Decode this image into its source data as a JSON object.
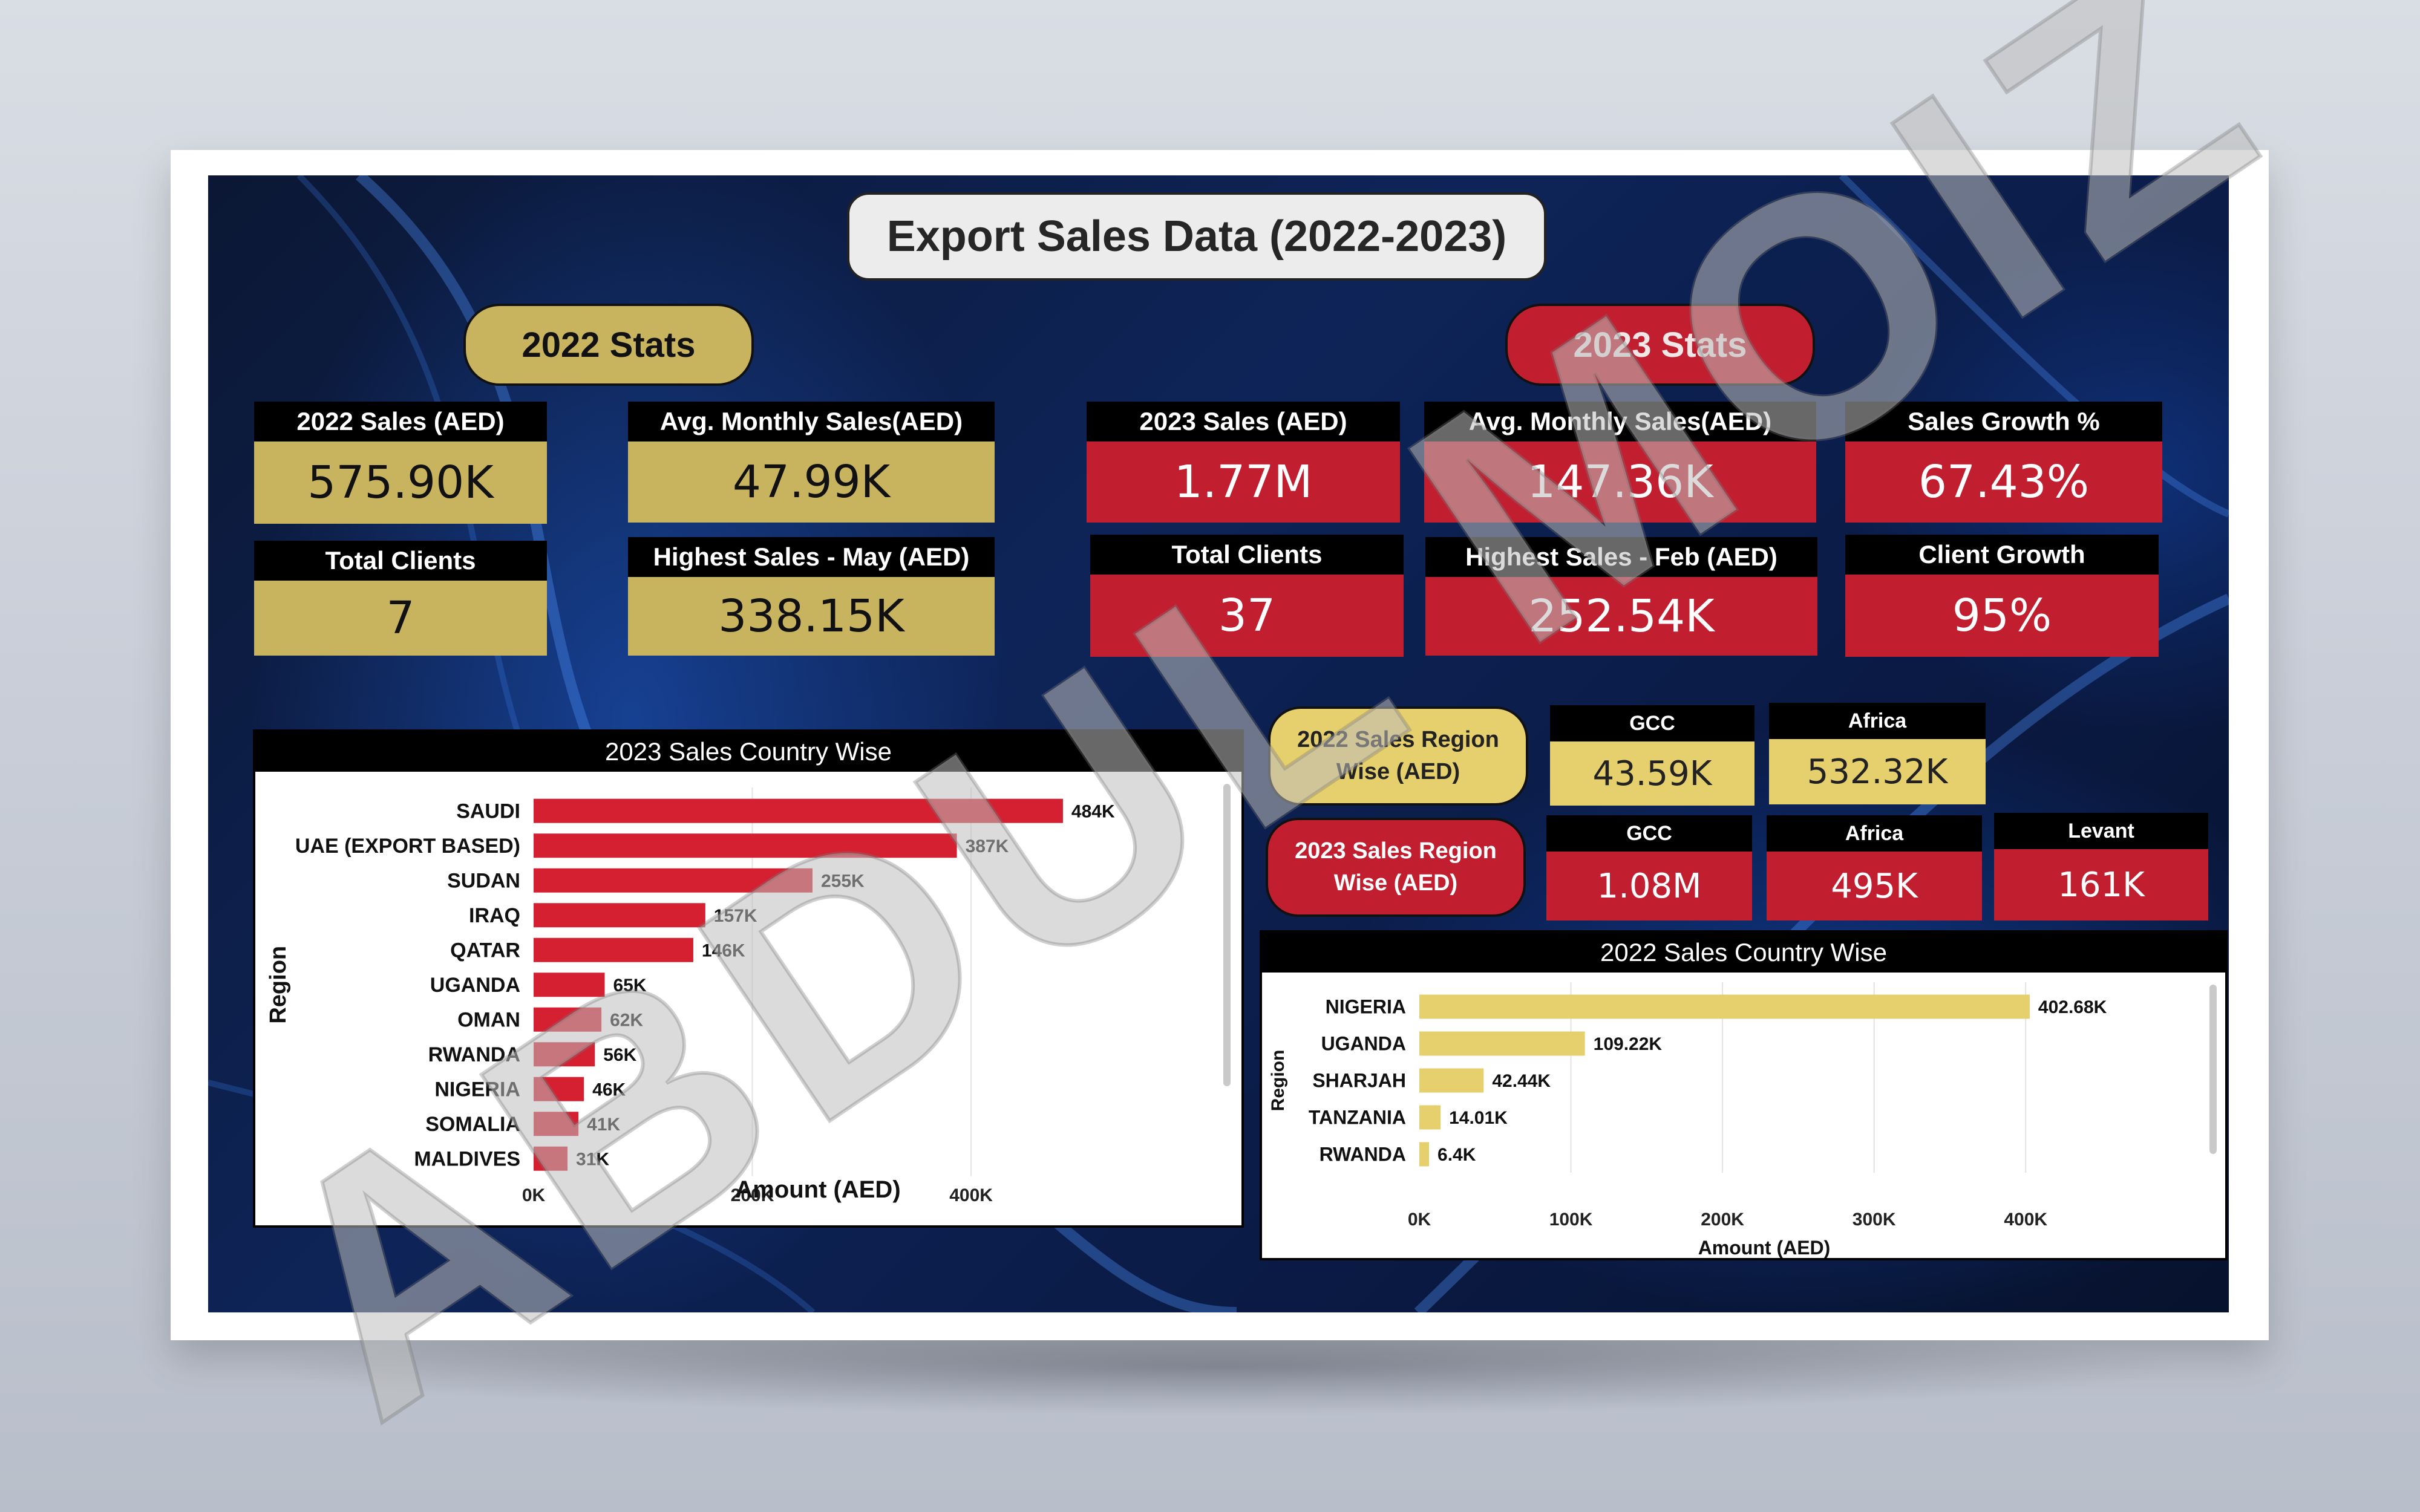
{
  "title": "Export Sales Data (2022-2023)",
  "stats2022": {
    "label": "2022 Stats",
    "cards": [
      {
        "header": "2022 Sales (AED)",
        "value": "575.90K"
      },
      {
        "header": "Avg. Monthly Sales(AED)",
        "value": "47.99K"
      },
      {
        "header": "Total Clients",
        "value": "7"
      },
      {
        "header": "Highest Sales - May (AED)",
        "value": "338.15K"
      }
    ]
  },
  "stats2023": {
    "label": "2023 Stats",
    "cards": [
      {
        "header": "2023 Sales (AED)",
        "value": "1.77M"
      },
      {
        "header": "Avg. Monthly Sales(AED)",
        "value": "147.36K"
      },
      {
        "header": "Sales Growth %",
        "value": "67.43%"
      },
      {
        "header": "Total Clients",
        "value": "37"
      },
      {
        "header": "Highest Sales - Feb (AED)",
        "value": "252.54K"
      },
      {
        "header": "Client Growth",
        "value": "95%"
      }
    ]
  },
  "region2022": {
    "label": "2022 Sales Region Wise (AED)",
    "label_line1": "2022 Sales Region",
    "label_line2": "Wise (AED)",
    "cards": [
      {
        "header": "GCC",
        "value": "43.59K"
      },
      {
        "header": "Africa",
        "value": "532.32K"
      }
    ]
  },
  "region2023": {
    "label": "2023 Sales Region Wise (AED)",
    "label_line1": "2023 Sales Region",
    "label_line2": "Wise (AED)",
    "cards": [
      {
        "header": "GCC",
        "value": "1.08M"
      },
      {
        "header": "Africa",
        "value": "495K"
      },
      {
        "header": "Levant",
        "value": "161K"
      }
    ]
  },
  "colors": {
    "gold": "#c8b35f",
    "light_gold": "#e6cf6d",
    "red": "#c11f30",
    "bar_red": "#d42030",
    "bar_gold": "#e6cf6d"
  },
  "watermark": "ABDUL MOIZ",
  "chart_data": [
    {
      "type": "bar",
      "orientation": "horizontal",
      "title": "2023 Sales Country Wise",
      "xlabel": "Amount (AED)",
      "ylabel": "Region",
      "categories": [
        "SAUDI",
        "UAE (EXPORT BASED)",
        "SUDAN",
        "IRAQ",
        "QATAR",
        "UGANDA",
        "OMAN",
        "RWANDA",
        "NIGERIA",
        "SOMALIA",
        "MALDIVES"
      ],
      "values": [
        484000,
        387000,
        255000,
        157000,
        146000,
        65000,
        62000,
        56000,
        46000,
        41000,
        31000
      ],
      "data_labels": [
        "484K",
        "387K",
        "255K",
        "157K",
        "146K",
        "65K",
        "62K",
        "56K",
        "46K",
        "41K",
        "31K"
      ],
      "xticks": [
        0,
        200000,
        400000
      ],
      "xtick_labels": [
        "0K",
        "200K",
        "400K"
      ],
      "xlim": [
        0,
        520000
      ],
      "grid": true
    },
    {
      "type": "bar",
      "orientation": "horizontal",
      "title": "2022 Sales Country Wise",
      "xlabel": "Amount (AED)",
      "ylabel": "Region",
      "categories": [
        "NIGERIA",
        "UGANDA",
        "SHARJAH",
        "TANZANIA",
        "RWANDA"
      ],
      "values": [
        402680,
        109220,
        42440,
        14010,
        6400
      ],
      "data_labels": [
        "402.68K",
        "109.22K",
        "42.44K",
        "14.01K",
        "6.4K"
      ],
      "xticks": [
        0,
        100000,
        200000,
        300000,
        400000
      ],
      "xtick_labels": [
        "0K",
        "100K",
        "200K",
        "300K",
        "400K"
      ],
      "xlim": [
        0,
        455000
      ],
      "grid": true
    }
  ]
}
